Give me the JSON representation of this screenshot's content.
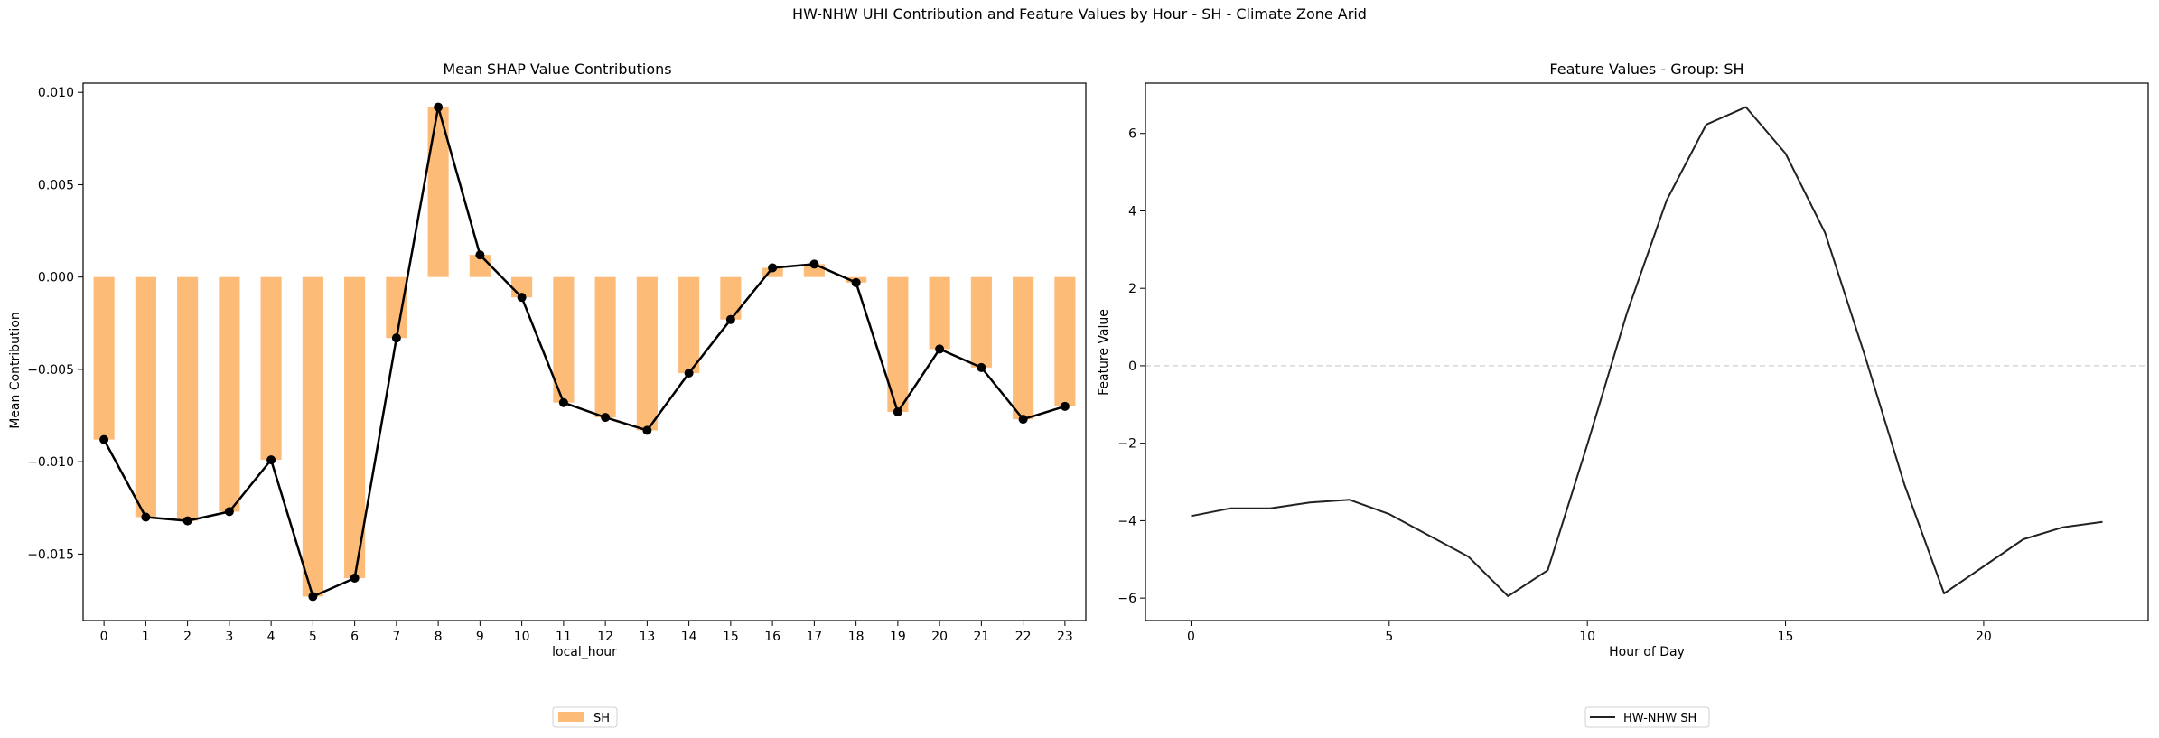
{
  "figure": {
    "suptitle": "HW-NHW UHI Contribution and Feature Values by Hour - SH - Climate Zone Arid"
  },
  "chart_data": [
    {
      "type": "bar",
      "title": "Mean SHAP Value Contributions",
      "xlabel": "local_hour",
      "ylabel": "Mean Contribution",
      "categories": [
        "0",
        "1",
        "2",
        "3",
        "4",
        "5",
        "6",
        "7",
        "8",
        "9",
        "10",
        "11",
        "12",
        "13",
        "14",
        "15",
        "16",
        "17",
        "18",
        "19",
        "20",
        "21",
        "22",
        "23"
      ],
      "series": [
        {
          "name": "SH",
          "color": "#fdbb78",
          "values": [
            -0.0088,
            -0.013,
            -0.0132,
            -0.0127,
            -0.0099,
            -0.0173,
            -0.0163,
            -0.0033,
            0.0092,
            0.0012,
            -0.0011,
            -0.0068,
            -0.0076,
            -0.0083,
            -0.0052,
            -0.0023,
            0.0005,
            0.0007,
            -0.0003,
            -0.0073,
            -0.0039,
            -0.0049,
            -0.0077,
            -0.007
          ]
        }
      ],
      "overlay_line": {
        "color": "#000000",
        "marker": "circle",
        "values": [
          -0.0088,
          -0.013,
          -0.0132,
          -0.0127,
          -0.0099,
          -0.0173,
          -0.0163,
          -0.0033,
          0.0092,
          0.0012,
          -0.0011,
          -0.0068,
          -0.0076,
          -0.0083,
          -0.0052,
          -0.0023,
          0.0005,
          0.0007,
          -0.0003,
          -0.0073,
          -0.0039,
          -0.0049,
          -0.0077,
          -0.007
        ]
      },
      "ylim": [
        -0.0186,
        0.0105
      ],
      "yticks": [
        -0.015,
        -0.01,
        -0.005,
        0.0,
        0.005,
        0.01
      ],
      "ytick_labels": [
        "−0.015",
        "−0.010",
        "−0.005",
        "0.000",
        "0.005",
        "0.010"
      ],
      "grid": false,
      "legend": {
        "placement": "bottom-center",
        "entries": [
          "SH"
        ]
      }
    },
    {
      "type": "line",
      "title": "Feature Values - Group: SH",
      "xlabel": "Hour of Day",
      "ylabel": "Feature Value",
      "series": [
        {
          "name": "HW-NHW SH",
          "color": "#222222",
          "x": [
            0,
            1,
            2,
            3,
            4,
            5,
            6,
            7,
            8,
            9,
            10,
            11,
            12,
            13,
            14,
            15,
            16,
            17,
            18,
            19,
            20,
            21,
            22,
            23
          ],
          "y": [
            -3.88,
            -3.68,
            -3.68,
            -3.53,
            -3.46,
            -3.83,
            -4.38,
            -4.93,
            -5.95,
            -5.28,
            -2.03,
            1.37,
            4.27,
            6.23,
            6.68,
            5.48,
            3.43,
            0.27,
            -3.07,
            -5.88,
            -5.18,
            -4.48,
            -4.17,
            -4.03
          ]
        }
      ],
      "reference_line": {
        "y": 0,
        "style": "dashed",
        "color": "#c8c8c8"
      },
      "xlim": [
        -1.15,
        24.15
      ],
      "ylim": [
        -6.58,
        7.3
      ],
      "xticks": [
        0,
        5,
        10,
        15,
        20
      ],
      "yticks": [
        -6,
        -4,
        -2,
        0,
        2,
        4,
        6
      ],
      "ytick_labels": [
        "−6",
        "−4",
        "−2",
        "0",
        "2",
        "4",
        "6"
      ],
      "grid": false,
      "legend": {
        "placement": "bottom-center",
        "entries": [
          "HW-NHW SH"
        ]
      }
    }
  ]
}
